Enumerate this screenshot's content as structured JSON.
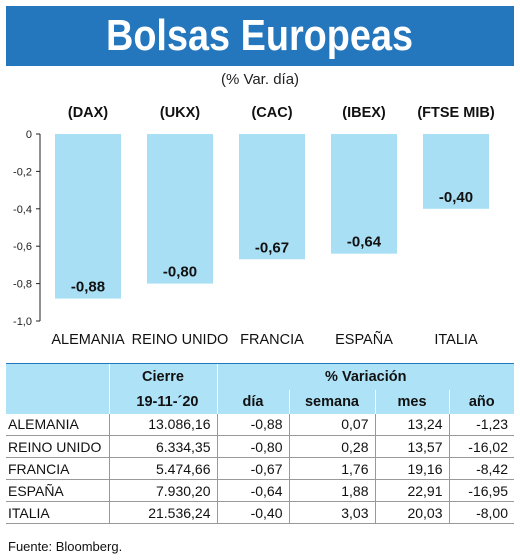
{
  "header": {
    "title": "Bolsas Europeas",
    "subtitle": "(% Var. día)"
  },
  "colors": {
    "title_bg": "#2476bd",
    "bar": "#a8dff5",
    "table_header_bg": "#aee2f7"
  },
  "chart_data": {
    "type": "bar",
    "index_labels": [
      "(DAX)",
      "(UKX)",
      "(CAC)",
      "(IBEX)",
      "(FTSE MIB)"
    ],
    "categories": [
      "ALEMANIA",
      "REINO UNIDO",
      "FRANCIA",
      "ESPAÑA",
      "ITALIA"
    ],
    "values": [
      -0.88,
      -0.8,
      -0.67,
      -0.64,
      -0.4
    ],
    "value_labels": [
      "-0,88",
      "-0,80",
      "-0,67",
      "-0,64",
      "-0,40"
    ],
    "ylim": [
      -1.0,
      0
    ],
    "yticks": [
      0,
      -0.2,
      -0.4,
      -0.6,
      -0.8,
      -1.0
    ],
    "ytick_labels": [
      "0",
      "-0,2",
      "-0,4",
      "-0,6",
      "-0,8",
      "-1,0"
    ],
    "grid": false
  },
  "table": {
    "group_headers": [
      "Cierre",
      "% Variación"
    ],
    "sub_headers": [
      "19-11-´20",
      "día",
      "semana",
      "mes",
      "año"
    ],
    "rows": [
      [
        "ALEMANIA",
        "13.086,16",
        "-0,88",
        "0,07",
        "13,24",
        "-1,23"
      ],
      [
        "REINO UNIDO",
        "6.334,35",
        "-0,80",
        "0,28",
        "13,57",
        "-16,02"
      ],
      [
        "FRANCIA",
        "5.474,66",
        "-0,67",
        "1,76",
        "19,16",
        "-8,42"
      ],
      [
        "ESPAÑA",
        "7.930,20",
        "-0,64",
        "1,88",
        "22,91",
        "-16,95"
      ],
      [
        "ITALIA",
        "21.536,24",
        "-0,40",
        "3,03",
        "20,03",
        "-8,00"
      ]
    ]
  },
  "footer": {
    "source": "Fuente: Bloomberg."
  }
}
